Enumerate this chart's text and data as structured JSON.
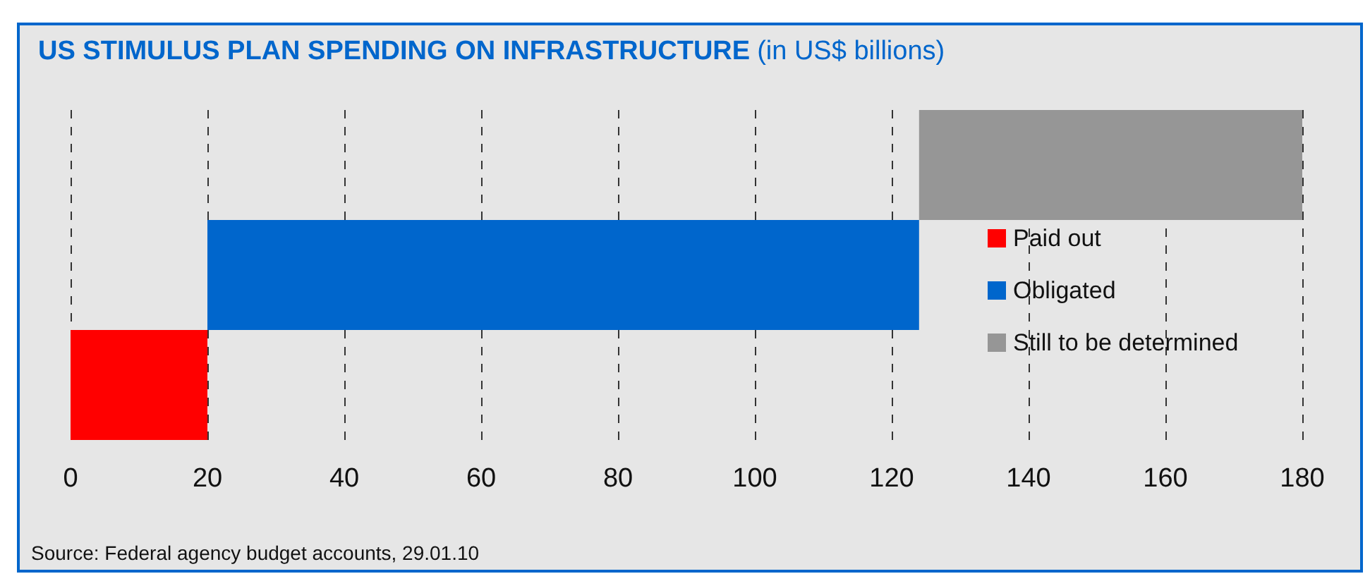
{
  "chart_data": {
    "type": "bar",
    "orientation": "horizontal",
    "title": "US STIMULUS PLAN SPENDING ON INFRASTRUCTURE",
    "subtitle": "(in US$ billions)",
    "categories": [
      null,
      null,
      null
    ],
    "series": [
      {
        "name": "Paid out",
        "color": "#ff0000",
        "values": [
          null,
          null,
          20
        ],
        "base": [
          null,
          null,
          0
        ]
      },
      {
        "name": "Obligated",
        "color": "#0066cc",
        "values": [
          null,
          104,
          null
        ],
        "base": [
          null,
          20,
          null
        ]
      },
      {
        "name": "Still to be determined",
        "color": "#969696",
        "values": [
          56,
          null,
          null
        ],
        "base": [
          124,
          null,
          null
        ]
      }
    ],
    "xlim": [
      0,
      180
    ],
    "xticks": [
      0,
      20,
      40,
      60,
      80,
      100,
      120,
      140,
      160,
      180
    ],
    "grid": "x",
    "legend": "right",
    "marker": "square",
    "annotations": [
      "Source: Federal agency budget accounts, 29.01.10"
    ]
  }
}
